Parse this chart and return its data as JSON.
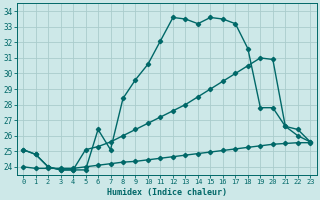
{
  "xlabel": "Humidex (Indice chaleur)",
  "ylabel": "",
  "bg_color": "#cde8e8",
  "grid_color": "#aacccc",
  "line_color": "#006868",
  "xlim": [
    -0.5,
    23.5
  ],
  "ylim": [
    23.5,
    34.5
  ],
  "yticks": [
    24,
    25,
    26,
    27,
    28,
    29,
    30,
    31,
    32,
    33,
    34
  ],
  "xticks": [
    0,
    1,
    2,
    3,
    4,
    5,
    6,
    7,
    8,
    9,
    10,
    11,
    12,
    13,
    14,
    15,
    16,
    17,
    18,
    19,
    20,
    21,
    22,
    23
  ],
  "line1_x": [
    0,
    1,
    2,
    3,
    4,
    5,
    6,
    7,
    8,
    9,
    10,
    11,
    12,
    13,
    14,
    15,
    16,
    17,
    18,
    19,
    20,
    21,
    22,
    23
  ],
  "line1_y": [
    25.1,
    24.8,
    24.0,
    23.8,
    23.8,
    23.8,
    26.4,
    25.1,
    28.4,
    29.6,
    30.6,
    32.1,
    33.6,
    33.5,
    33.2,
    33.6,
    33.5,
    33.2,
    31.6,
    27.8,
    27.8,
    26.6,
    26.4,
    25.6
  ],
  "line2_x": [
    0,
    1,
    2,
    3,
    4,
    5,
    6,
    7,
    8,
    9,
    10,
    11,
    12,
    13,
    14,
    15,
    16,
    17,
    18,
    19,
    20,
    21,
    22,
    23
  ],
  "line2_y": [
    25.1,
    24.8,
    24.0,
    23.8,
    23.8,
    25.1,
    25.3,
    25.6,
    26.0,
    26.4,
    26.8,
    27.2,
    27.6,
    28.0,
    28.5,
    29.0,
    29.5,
    30.0,
    30.5,
    31.0,
    30.9,
    26.6,
    26.0,
    25.6
  ],
  "line3_x": [
    0,
    1,
    2,
    3,
    4,
    5,
    6,
    7,
    8,
    9,
    10,
    11,
    12,
    13,
    14,
    15,
    16,
    17,
    18,
    19,
    20,
    21,
    22,
    23
  ],
  "line3_y": [
    24.0,
    23.9,
    23.9,
    23.9,
    23.9,
    24.0,
    24.1,
    24.2,
    24.3,
    24.35,
    24.45,
    24.55,
    24.65,
    24.75,
    24.85,
    24.95,
    25.05,
    25.15,
    25.25,
    25.35,
    25.45,
    25.5,
    25.55,
    25.55
  ]
}
